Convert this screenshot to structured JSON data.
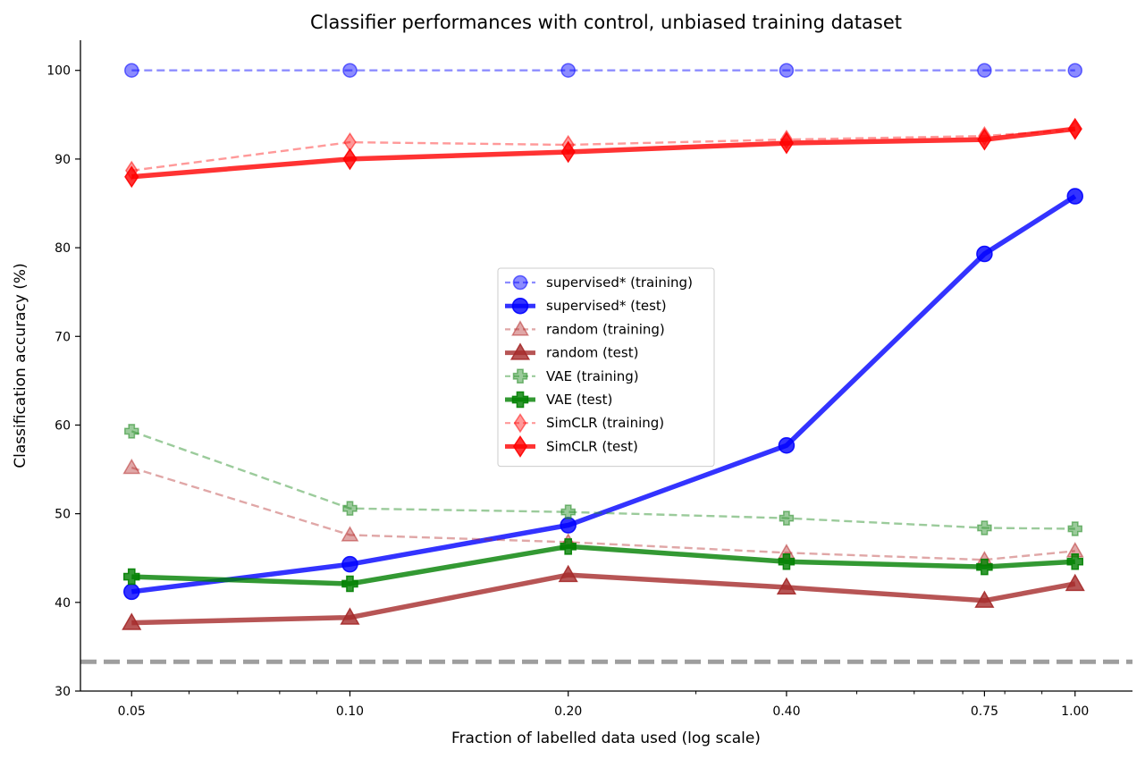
{
  "chart_data": {
    "type": "line",
    "title": "Classifier performances with control, unbiased training dataset",
    "xlabel": "Fraction of labelled data used (log scale)",
    "ylabel": "Classification accuracy (%)",
    "x_scale": "log",
    "x": [
      0.05,
      0.1,
      0.2,
      0.4,
      0.75,
      1.0
    ],
    "x_tick_labels": [
      "0.05",
      "0.10",
      "0.20",
      "0.40",
      "0.75",
      "1.00"
    ],
    "y_ticks": [
      30,
      40,
      50,
      60,
      70,
      80,
      90,
      100
    ],
    "xlim": [
      0.0425,
      1.2
    ],
    "ylim": [
      30,
      103.4
    ],
    "reference_line": {
      "y": 33.3,
      "style": "dashed",
      "color": "#9e9e9e"
    },
    "grid": false,
    "legend_position": "center",
    "series": [
      {
        "name": "supervised* (training)",
        "values": [
          100,
          100,
          100,
          100,
          100,
          100
        ],
        "color": "#0000ff",
        "marker": "circle",
        "dashed": true,
        "opacity": 0.45
      },
      {
        "name": "supervised* (test)",
        "values": [
          41.2,
          44.3,
          48.7,
          57.7,
          79.3,
          85.8
        ],
        "color": "#0000ff",
        "marker": "circle",
        "dashed": false,
        "opacity": 0.8
      },
      {
        "name": "random (training)",
        "values": [
          55.2,
          47.6,
          46.8,
          45.6,
          44.8,
          45.8
        ],
        "color": "#b22222",
        "marker": "triangle",
        "dashed": true,
        "opacity": 0.4
      },
      {
        "name": "random (test)",
        "values": [
          37.7,
          38.3,
          43.1,
          41.7,
          40.2,
          42.1
        ],
        "color": "#a52a2a",
        "marker": "triangle",
        "dashed": false,
        "opacity": 0.8
      },
      {
        "name": "VAE (training)",
        "values": [
          59.3,
          50.6,
          50.2,
          49.5,
          48.4,
          48.3
        ],
        "color": "#228b22",
        "marker": "plus",
        "dashed": true,
        "opacity": 0.45
      },
      {
        "name": "VAE (test)",
        "values": [
          42.9,
          42.1,
          46.3,
          44.6,
          44.0,
          44.6
        ],
        "color": "#008000",
        "marker": "plus",
        "dashed": false,
        "opacity": 0.8
      },
      {
        "name": "SimCLR (training)",
        "values": [
          88.7,
          91.9,
          91.6,
          92.2,
          92.6,
          93.3
        ],
        "color": "#ff0000",
        "marker": "diamond",
        "dashed": true,
        "opacity": 0.4
      },
      {
        "name": "SimCLR (test)",
        "values": [
          88.0,
          90.0,
          90.8,
          91.8,
          92.2,
          93.4
        ],
        "color": "#ff0000",
        "marker": "diamond",
        "dashed": false,
        "opacity": 0.8
      }
    ]
  }
}
